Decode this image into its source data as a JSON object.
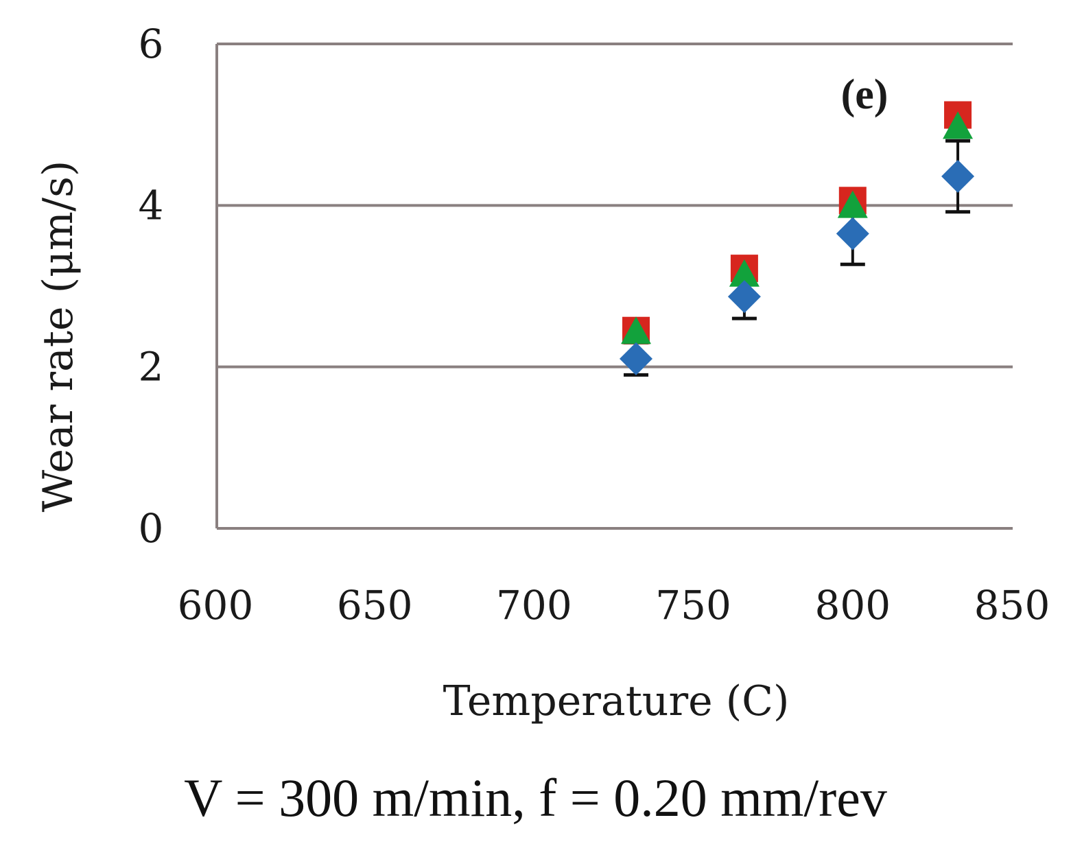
{
  "caption": "V = 300 m/min, f = 0.20 mm/rev",
  "chart_data": {
    "type": "scatter",
    "title": "",
    "panel_label": "(e)",
    "xlabel": "Temperature (C)",
    "ylabel": "Wear rate (μm/s)",
    "xlim": [
      600,
      850
    ],
    "ylim": [
      0,
      6
    ],
    "x_ticks": [
      600,
      650,
      700,
      750,
      800,
      850
    ],
    "y_ticks": [
      0,
      2,
      4,
      6
    ],
    "grid": "horizontal",
    "legend": "none",
    "series": [
      {
        "name": "red squares",
        "marker": "square",
        "color": "#d7261e",
        "points": [
          [
            732,
            2.45
          ],
          [
            766,
            3.22
          ],
          [
            800,
            4.06
          ],
          [
            833,
            5.12
          ]
        ]
      },
      {
        "name": "green triangles",
        "marker": "triangle",
        "color": "#12a23c",
        "points": [
          [
            732,
            2.42
          ],
          [
            766,
            3.13
          ],
          [
            800,
            3.98
          ],
          [
            833,
            4.96
          ]
        ]
      },
      {
        "name": "blue diamonds",
        "marker": "diamond",
        "color": "#2a6db6",
        "points": [
          [
            732,
            2.1
          ],
          [
            766,
            2.87
          ],
          [
            800,
            3.65
          ],
          [
            833,
            4.36
          ]
        ],
        "error_bars": [
          [
            1.9,
            2.3
          ],
          [
            2.6,
            3.13
          ],
          [
            3.27,
            4.02
          ],
          [
            3.92,
            4.8
          ]
        ]
      }
    ]
  }
}
